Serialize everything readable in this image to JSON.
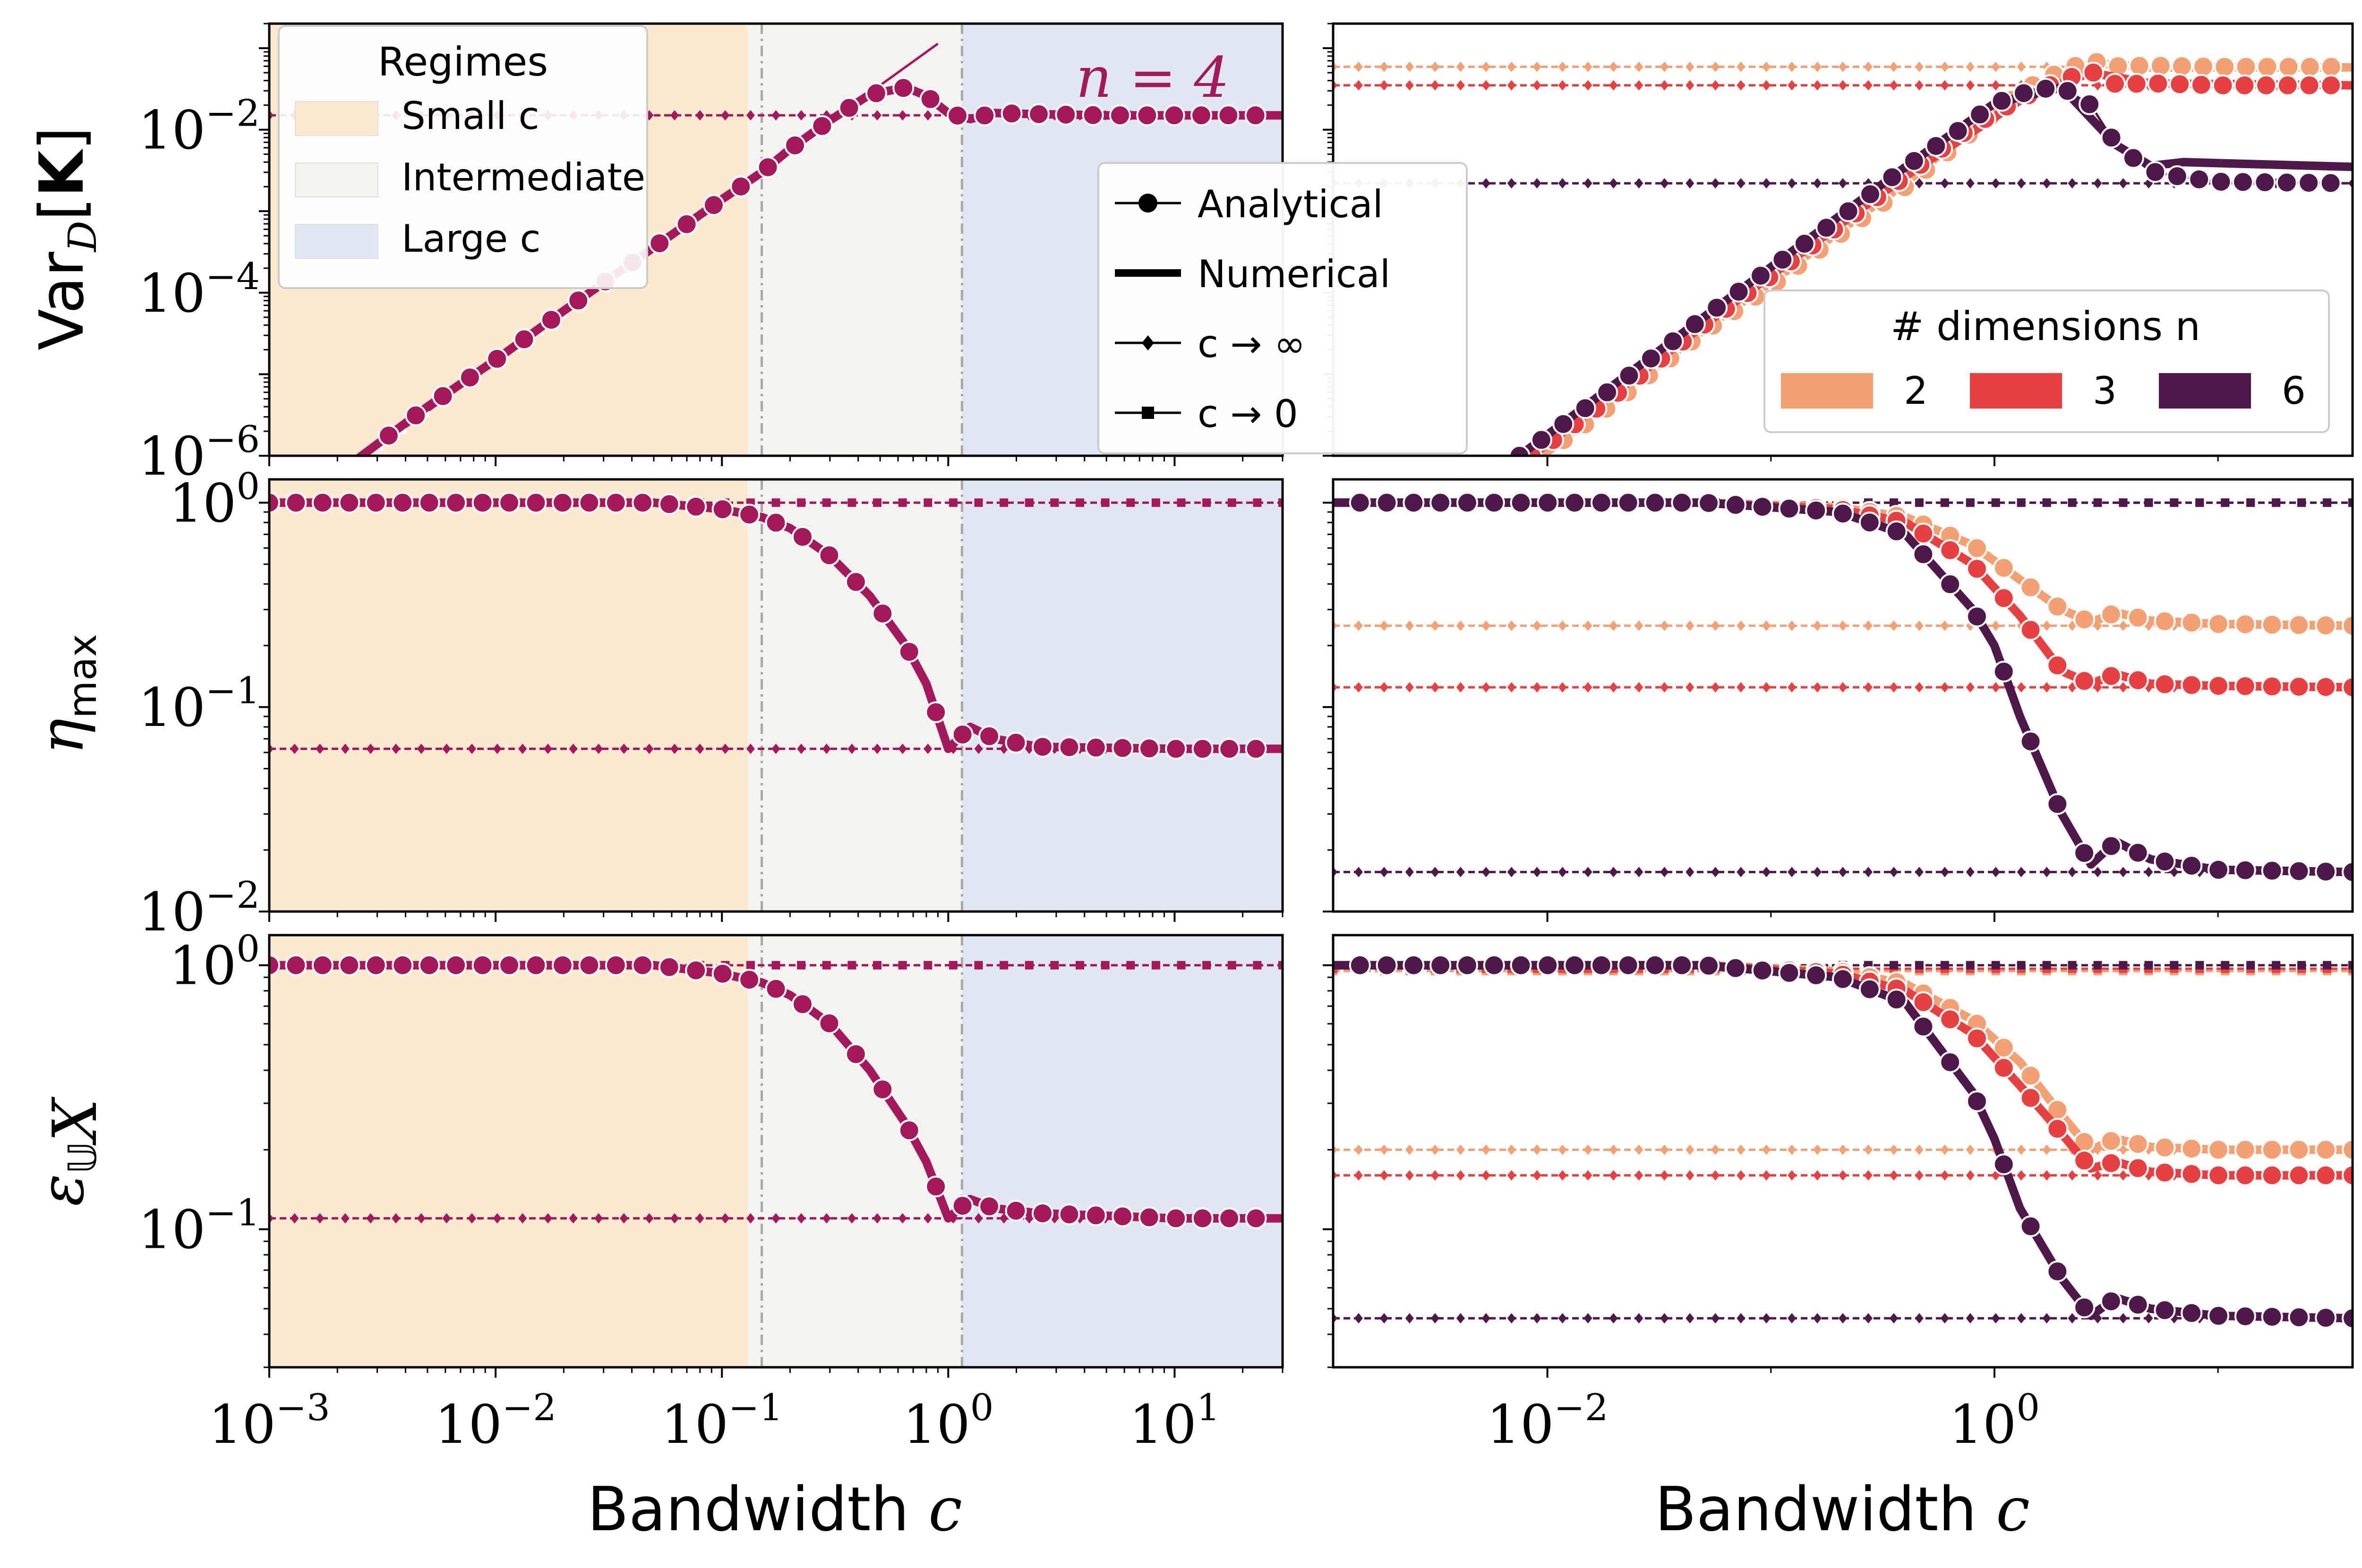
{
  "chart_data": {
    "type": "line",
    "x_scale": "log",
    "y_scale": "log",
    "xlabel": "Bandwidth c",
    "colors": {
      "n2": "#f5a073",
      "n3": "#e84040",
      "n4": "#a3195b",
      "n6": "#4e1848"
    },
    "annotation": "n = 4",
    "regimes": {
      "title": "Regimes",
      "items": [
        {
          "label": "Small c",
          "color": "#fde9cf"
        },
        {
          "label": "Intermediate",
          "color": "#f3f2ee"
        },
        {
          "label": "Large c",
          "color": "#dfe7f3"
        }
      ],
      "boundaries": [
        0.13,
        0.15,
        1.15
      ]
    },
    "style_legend": [
      "Analytical",
      "Numerical",
      "c → ∞",
      "c → 0"
    ],
    "dim_legend": {
      "title": "# dimensions n",
      "items": [
        {
          "label": "2",
          "key": "n2"
        },
        {
          "label": "3",
          "key": "n3"
        },
        {
          "label": "6",
          "key": "n6"
        }
      ]
    },
    "rows": [
      {
        "ylabel": "Var_D[K]",
        "ylim": [
          1e-06,
          0.2
        ],
        "yticks": [
          "10^-2",
          "10^-4",
          "10^-6"
        ],
        "left": {
          "n": 4,
          "analytical": [
            [
              0.00085,
              1e-07
            ],
            [
              0.001,
              1.4e-07
            ],
            [
              0.002,
              6e-07
            ],
            [
              0.005,
              4e-06
            ],
            [
              0.01,
              1.5e-05
            ],
            [
              0.02,
              6e-05
            ],
            [
              0.05,
              0.00036
            ],
            [
              0.1,
              0.0014
            ],
            [
              0.15,
              0.003
            ],
            [
              0.2,
              0.0058
            ],
            [
              0.3,
              0.013
            ],
            [
              0.45,
              0.027
            ],
            [
              0.65,
              0.033
            ],
            [
              0.8,
              0.026
            ],
            [
              1.0,
              0.016
            ],
            [
              1.25,
              0.0135
            ],
            [
              1.6,
              0.016
            ],
            [
              2.5,
              0.0155
            ],
            [
              5,
              0.015
            ],
            [
              10,
              0.015
            ],
            [
              30,
              0.015
            ]
          ],
          "inf": 0.015,
          "zero_coef": 0.14
        },
        "right": {
          "series": [
            {
              "key": "n2",
              "inf": 0.059,
              "analytical": [
                [
                  0.0095,
                  1e-06
                ],
                [
                  0.02,
                  4.5e-06
                ],
                [
                  0.05,
                  3.3e-05
                ],
                [
                  0.1,
                  0.00012
                ],
                [
                  0.2,
                  0.0005
                ],
                [
                  0.4,
                  0.002
                ],
                [
                  0.7,
                  0.007
                ],
                [
                  1.0,
                  0.016
                ],
                [
                  1.3,
                  0.028
                ],
                [
                  1.6,
                  0.04
                ],
                [
                  2.2,
                  0.058
                ],
                [
                  2.7,
                  0.07
                ],
                [
                  3.5,
                  0.06
                ],
                [
                  5,
                  0.061
                ],
                [
                  10,
                  0.059
                ],
                [
                  40,
                  0.059
                ]
              ],
              "numerical": [
                [
                  0.0095,
                  1e-06
                ],
                [
                  0.05,
                  3.5e-05
                ],
                [
                  0.2,
                  0.00055
                ],
                [
                  1.0,
                  0.018
                ],
                [
                  2.7,
                  0.066
                ],
                [
                  5,
                  0.058
                ],
                [
                  40,
                  0.058
                ]
              ]
            },
            {
              "key": "n3",
              "inf": 0.035,
              "analytical": [
                [
                  0.0085,
                  1e-06
                ],
                [
                  0.02,
                  5.5e-06
                ],
                [
                  0.05,
                  4e-05
                ],
                [
                  0.1,
                  0.00016
                ],
                [
                  0.2,
                  0.00065
                ],
                [
                  0.4,
                  0.0027
                ],
                [
                  0.7,
                  0.0085
                ],
                [
                  1.0,
                  0.016
                ],
                [
                  1.4,
                  0.026
                ],
                [
                  2.0,
                  0.041
                ],
                [
                  2.7,
                  0.052
                ],
                [
                  3.5,
                  0.036
                ],
                [
                  5,
                  0.037
                ],
                [
                  10,
                  0.035
                ],
                [
                  40,
                  0.035
                ]
              ],
              "numerical": [
                [
                  0.0085,
                  1e-06
                ],
                [
                  0.05,
                  4e-05
                ],
                [
                  0.4,
                  0.0027
                ],
                [
                  1.4,
                  0.026
                ],
                [
                  2.7,
                  0.05
                ],
                [
                  5,
                  0.037
                ],
                [
                  40,
                  0.035
                ]
              ]
            },
            {
              "key": "n6",
              "inf": 0.0022,
              "analytical": [
                [
                  0.0075,
                  1e-06
                ],
                [
                  0.02,
                  7e-06
                ],
                [
                  0.05,
                  5e-05
                ],
                [
                  0.1,
                  0.0002
                ],
                [
                  0.2,
                  0.0008
                ],
                [
                  0.4,
                  0.0035
                ],
                [
                  0.7,
                  0.01
                ],
                [
                  1.0,
                  0.021
                ],
                [
                  1.5,
                  0.031
                ],
                [
                  2.0,
                  0.033
                ],
                [
                  2.7,
                  0.02
                ],
                [
                  3.5,
                  0.0065
                ],
                [
                  5,
                  0.0031
                ],
                [
                  7,
                  0.0026
                ],
                [
                  10,
                  0.0023
                ],
                [
                  40,
                  0.0022
                ]
              ],
              "numerical": [
                [
                  0.0075,
                  1e-06
                ],
                [
                  0.05,
                  5e-05
                ],
                [
                  0.4,
                  0.0035
                ],
                [
                  1.0,
                  0.021
                ],
                [
                  2.0,
                  0.033
                ],
                [
                  3.5,
                  0.0065
                ],
                [
                  5,
                  0.0036
                ],
                [
                  7,
                  0.004
                ],
                [
                  40,
                  0.0035
                ]
              ]
            }
          ]
        }
      },
      {
        "ylabel": "η_max",
        "ylim": [
          0.01,
          1.3
        ],
        "yticks": [
          "10^0",
          "10^-1",
          "10^-2"
        ],
        "left": {
          "n": 4,
          "analytical": [
            [
              0.001,
              1
            ],
            [
              0.01,
              1
            ],
            [
              0.05,
              1
            ],
            [
              0.1,
              0.93
            ],
            [
              0.15,
              0.85
            ],
            [
              0.2,
              0.75
            ],
            [
              0.3,
              0.55
            ],
            [
              0.45,
              0.35
            ],
            [
              0.65,
              0.2
            ],
            [
              0.8,
              0.13
            ],
            [
              1.0,
              0.0625
            ],
            [
              1.25,
              0.08
            ],
            [
              1.6,
              0.07
            ],
            [
              2.5,
              0.064
            ],
            [
              10,
              0.0625
            ],
            [
              30,
              0.0625
            ]
          ],
          "inf": 0.0625,
          "zero": 1.0
        },
        "right": {
          "series": [
            {
              "key": "n2",
              "inf": 0.25,
              "zero": 1.0,
              "analytical": [
                [
                  0.0011,
                  1
                ],
                [
                  0.05,
                  1
                ],
                [
                  0.2,
                  0.95
                ],
                [
                  0.4,
                  0.85
                ],
                [
                  0.8,
                  0.62
                ],
                [
                  1.3,
                  0.42
                ],
                [
                  2.0,
                  0.3
                ],
                [
                  2.7,
                  0.26
                ],
                [
                  3.5,
                  0.29
                ],
                [
                  5,
                  0.265
                ],
                [
                  10,
                  0.255
                ],
                [
                  40,
                  0.25
                ]
              ]
            },
            {
              "key": "n3",
              "inf": 0.125,
              "zero": 1.0,
              "analytical": [
                [
                  0.0011,
                  1
                ],
                [
                  0.05,
                  1
                ],
                [
                  0.2,
                  0.93
                ],
                [
                  0.4,
                  0.8
                ],
                [
                  0.8,
                  0.5
                ],
                [
                  1.3,
                  0.28
                ],
                [
                  2.0,
                  0.15
                ],
                [
                  2.7,
                  0.13
                ],
                [
                  3.5,
                  0.145
                ],
                [
                  5,
                  0.13
                ],
                [
                  10,
                  0.127
                ],
                [
                  40,
                  0.125
                ]
              ]
            },
            {
              "key": "n6",
              "inf": 0.0156,
              "zero": 1.0,
              "analytical": [
                [
                  0.0011,
                  1
                ],
                [
                  0.05,
                  1
                ],
                [
                  0.2,
                  0.9
                ],
                [
                  0.4,
                  0.7
                ],
                [
                  0.8,
                  0.3
                ],
                [
                  1.0,
                  0.2
                ],
                [
                  1.3,
                  0.09
                ],
                [
                  2.0,
                  0.03
                ],
                [
                  2.7,
                  0.017
                ],
                [
                  3.5,
                  0.022
                ],
                [
                  5,
                  0.018
                ],
                [
                  10,
                  0.016
                ],
                [
                  40,
                  0.0156
                ]
              ]
            }
          ]
        }
      },
      {
        "ylabel": "ε_U_X",
        "ylim": [
          0.03,
          1.3
        ],
        "yticks": [
          "10^0",
          "10^-1"
        ],
        "left": {
          "n": 4,
          "analytical": [
            [
              0.001,
              1
            ],
            [
              0.01,
              1
            ],
            [
              0.05,
              1
            ],
            [
              0.1,
              0.93
            ],
            [
              0.15,
              0.86
            ],
            [
              0.2,
              0.77
            ],
            [
              0.3,
              0.6
            ],
            [
              0.45,
              0.4
            ],
            [
              0.65,
              0.25
            ],
            [
              0.8,
              0.18
            ],
            [
              1.0,
              0.11
            ],
            [
              1.25,
              0.13
            ],
            [
              1.6,
              0.12
            ],
            [
              2.5,
              0.115
            ],
            [
              10,
              0.11
            ],
            [
              30,
              0.11
            ]
          ],
          "inf": 0.11,
          "zero": 1.0
        },
        "right": {
          "series": [
            {
              "key": "n2",
              "inf": 0.2,
              "zero": 0.95,
              "analytical": [
                [
                  0.0011,
                  1
                ],
                [
                  0.05,
                  1
                ],
                [
                  0.2,
                  0.95
                ],
                [
                  0.4,
                  0.85
                ],
                [
                  0.8,
                  0.62
                ],
                [
                  1.3,
                  0.43
                ],
                [
                  2.0,
                  0.27
                ],
                [
                  2.7,
                  0.2
                ],
                [
                  3.5,
                  0.22
                ],
                [
                  5,
                  0.205
                ],
                [
                  10,
                  0.2
                ],
                [
                  40,
                  0.2
                ]
              ]
            },
            {
              "key": "n3",
              "inf": 0.16,
              "zero": 0.97,
              "analytical": [
                [
                  0.0011,
                  1
                ],
                [
                  0.05,
                  1
                ],
                [
                  0.2,
                  0.93
                ],
                [
                  0.4,
                  0.8
                ],
                [
                  0.8,
                  0.55
                ],
                [
                  1.3,
                  0.35
                ],
                [
                  2.0,
                  0.23
                ],
                [
                  2.7,
                  0.17
                ],
                [
                  3.5,
                  0.18
                ],
                [
                  5,
                  0.165
                ],
                [
                  10,
                  0.16
                ],
                [
                  40,
                  0.16
                ]
              ]
            },
            {
              "key": "n6",
              "inf": 0.046,
              "zero": 1.0,
              "analytical": [
                [
                  0.0011,
                  1
                ],
                [
                  0.05,
                  1
                ],
                [
                  0.2,
                  0.9
                ],
                [
                  0.4,
                  0.72
                ],
                [
                  0.8,
                  0.33
                ],
                [
                  1.0,
                  0.22
                ],
                [
                  1.3,
                  0.12
                ],
                [
                  2.0,
                  0.065
                ],
                [
                  2.7,
                  0.047
                ],
                [
                  3.5,
                  0.055
                ],
                [
                  5,
                  0.05
                ],
                [
                  10,
                  0.047
                ],
                [
                  40,
                  0.046
                ]
              ]
            }
          ]
        }
      }
    ],
    "left_xlim": [
      0.001,
      30
    ],
    "left_xticks": [
      "10^-3",
      "10^-2",
      "10^-1",
      "10^0",
      "10^1"
    ],
    "right_xlim": [
      0.0011,
      40
    ],
    "right_xticks": [
      "10^-2",
      "10^0"
    ]
  }
}
